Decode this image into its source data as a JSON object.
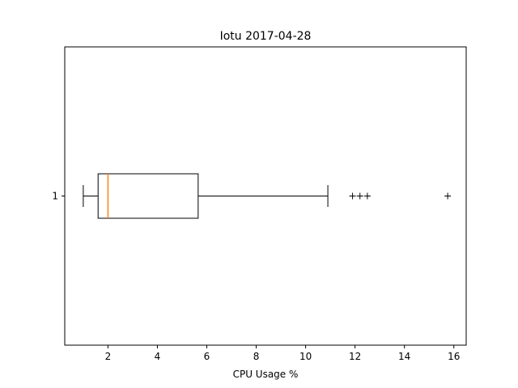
{
  "chart_data": {
    "type": "box",
    "orientation": "horizontal",
    "title": "Iotu 2017-04-28",
    "xlabel": "CPU Usage %",
    "ylabel": "",
    "xlim": [
      0.25,
      16.5
    ],
    "xticks": [
      2,
      4,
      6,
      8,
      10,
      12,
      14,
      16
    ],
    "yticks": [
      "1"
    ],
    "grid": false,
    "boxes": [
      {
        "label": "1",
        "whisker_low": 1.0,
        "q1": 1.6,
        "median": 2.0,
        "q3": 5.65,
        "whisker_high": 10.9,
        "fliers": [
          11.9,
          12.2,
          12.5,
          15.75
        ]
      }
    ],
    "colors": {
      "box": "#000000",
      "median": "#ff7f0e",
      "whisker": "#000000"
    }
  }
}
